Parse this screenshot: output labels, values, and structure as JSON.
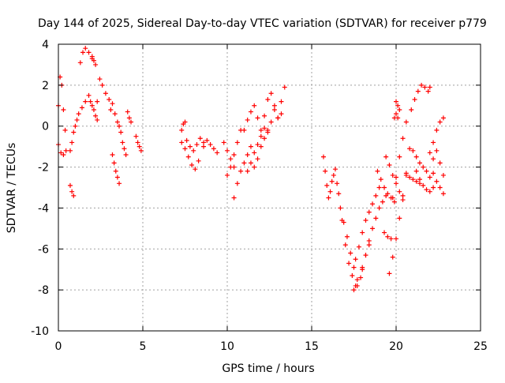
{
  "chart_data": {
    "type": "scatter",
    "title": "Day 144 of 2025, Sidereal Day-to-day VTEC variation (SDTVAR) for receiver p779",
    "xlabel": "GPS time / hours",
    "ylabel": "SDTVAR / TECUs",
    "xlim": [
      0,
      25
    ],
    "ylim": [
      -10,
      4
    ],
    "xticks": [
      0,
      5,
      10,
      15,
      20,
      25
    ],
    "xtick_labels": [
      "0",
      "5",
      "10",
      "15",
      "20",
      "25"
    ],
    "yticks": [
      4,
      2,
      0,
      -2,
      -4,
      -6,
      -8,
      -10
    ],
    "ytick_labels": [
      "4",
      "2",
      "0",
      "-2",
      "-4",
      "-6",
      "-8",
      "-10"
    ],
    "grid": true,
    "legend": "none",
    "marker": "plus",
    "color": "#ff0000",
    "series": [
      {
        "x": [
          0.0,
          0.1,
          0.2,
          0.3,
          0.4
        ],
        "y": [
          1.0,
          2.4,
          2.0,
          0.8,
          -0.2
        ]
      },
      {
        "x": [
          0.0,
          0.15,
          0.3,
          0.45
        ],
        "y": [
          -0.9,
          -1.3,
          -1.4,
          -1.2
        ]
      },
      {
        "x": [
          0.7,
          0.8,
          0.9,
          1.0,
          1.1,
          1.2,
          1.4,
          1.6
        ],
        "y": [
          -1.2,
          -0.8,
          -0.3,
          0.0,
          0.3,
          0.6,
          0.9,
          1.2
        ]
      },
      {
        "x": [
          0.7,
          0.8,
          0.9
        ],
        "y": [
          -2.9,
          -3.2,
          -3.4
        ]
      },
      {
        "x": [
          1.3,
          1.45,
          1.6,
          1.8,
          2.0
        ],
        "y": [
          3.1,
          3.6,
          3.8,
          3.6,
          3.3
        ]
      },
      {
        "x": [
          1.8,
          1.9,
          2.0,
          2.1,
          2.2,
          2.3
        ],
        "y": [
          1.5,
          1.2,
          1.0,
          0.8,
          0.5,
          0.3
        ]
      },
      {
        "x": [
          2.0,
          2.1,
          2.2
        ],
        "y": [
          3.4,
          3.2,
          3.0
        ]
      },
      {
        "x": [
          2.3,
          2.45,
          2.6,
          2.8,
          3.0,
          3.1
        ],
        "y": [
          1.2,
          2.3,
          2.0,
          1.6,
          1.3,
          0.8
        ]
      },
      {
        "x": [
          3.2,
          3.35,
          3.5,
          3.6,
          3.7
        ],
        "y": [
          1.1,
          0.6,
          0.2,
          0.0,
          -0.3
        ]
      },
      {
        "x": [
          3.2,
          3.3,
          3.4,
          3.5,
          3.6
        ],
        "y": [
          -1.4,
          -1.8,
          -2.2,
          -2.5,
          -2.8
        ]
      },
      {
        "x": [
          3.8,
          3.9,
          4.0
        ],
        "y": [
          -0.8,
          -1.1,
          -1.4
        ]
      },
      {
        "x": [
          4.1,
          4.2,
          4.3
        ],
        "y": [
          0.7,
          0.4,
          0.2
        ]
      },
      {
        "x": [
          4.6,
          4.7,
          4.8,
          4.9
        ],
        "y": [
          -0.5,
          -0.8,
          -1.0,
          -1.2
        ]
      },
      {
        "x": [
          7.3,
          7.4,
          7.5
        ],
        "y": [
          -0.2,
          0.1,
          0.2
        ]
      },
      {
        "x": [
          7.3,
          7.5,
          7.7,
          7.9,
          8.1,
          8.3
        ],
        "y": [
          -0.8,
          -1.1,
          -1.5,
          -1.9,
          -2.1,
          -1.7
        ]
      },
      {
        "x": [
          7.6,
          7.8,
          8.0,
          8.2,
          8.4,
          8.6
        ],
        "y": [
          -0.7,
          -1.0,
          -1.2,
          -0.9,
          -0.6,
          -0.8
        ]
      },
      {
        "x": [
          8.6,
          8.8,
          9.0,
          9.2,
          9.4
        ],
        "y": [
          -1.0,
          -0.7,
          -0.9,
          -1.1,
          -1.3
        ]
      },
      {
        "x": [
          9.8,
          10.0,
          10.2,
          10.4
        ],
        "y": [
          -0.8,
          -1.2,
          -1.6,
          -2.0
        ]
      },
      {
        "x": [
          10.0,
          10.2,
          10.4,
          10.6,
          10.8
        ],
        "y": [
          -2.4,
          -2.0,
          -1.4,
          -0.8,
          -0.2
        ]
      },
      {
        "x": [
          10.4,
          10.6,
          10.8,
          11.0,
          11.2,
          11.4
        ],
        "y": [
          -3.5,
          -2.8,
          -2.2,
          -1.8,
          -1.4,
          -1.0
        ]
      },
      {
        "x": [
          11.0,
          11.2,
          11.4,
          11.6,
          11.8,
          12.0
        ],
        "y": [
          -0.2,
          0.3,
          0.7,
          1.0,
          0.4,
          -0.2
        ]
      },
      {
        "x": [
          11.2,
          11.4,
          11.6,
          11.8,
          12.0,
          12.2
        ],
        "y": [
          -2.2,
          -1.8,
          -1.3,
          -0.9,
          -0.5,
          -0.1
        ]
      },
      {
        "x": [
          11.6,
          11.8,
          12.0,
          12.2,
          12.4
        ],
        "y": [
          -2.0,
          -1.6,
          -1.0,
          -0.6,
          -0.2
        ]
      },
      {
        "x": [
          12.2,
          12.4,
          12.6,
          12.8,
          13.0,
          13.2,
          13.4
        ],
        "y": [
          0.5,
          1.3,
          1.6,
          1.0,
          0.4,
          1.2,
          1.9
        ]
      },
      {
        "x": [
          12.4,
          12.6,
          12.8,
          13.0,
          13.2
        ],
        "y": [
          -0.3,
          0.2,
          0.8,
          0.4,
          0.6
        ]
      },
      {
        "x": [
          15.7,
          15.8,
          15.9,
          16.0,
          16.1,
          16.2,
          16.3,
          16.4
        ],
        "y": [
          -1.5,
          -2.2,
          -2.9,
          -3.5,
          -3.2,
          -2.7,
          -2.4,
          -2.1
        ]
      },
      {
        "x": [
          16.5,
          16.6,
          16.8,
          17.0,
          17.2,
          17.4,
          17.6
        ],
        "y": [
          -2.8,
          -3.3,
          -4.6,
          -5.8,
          -6.7,
          -7.3,
          -7.8
        ]
      },
      {
        "x": [
          16.7,
          16.9,
          17.1,
          17.3,
          17.5,
          17.7
        ],
        "y": [
          -4.0,
          -4.7,
          -5.4,
          -6.2,
          -6.9,
          -7.5
        ]
      },
      {
        "x": [
          17.5,
          17.7,
          17.9,
          18.0,
          18.2,
          18.4
        ],
        "y": [
          -8.0,
          -7.8,
          -7.4,
          -7.0,
          -6.3,
          -5.8
        ]
      },
      {
        "x": [
          17.6,
          17.8,
          18.0,
          18.2,
          18.4,
          18.6,
          18.8,
          19.0
        ],
        "y": [
          -6.5,
          -5.9,
          -5.2,
          -4.6,
          -4.2,
          -3.8,
          -3.4,
          -3.0
        ]
      },
      {
        "x": [
          18.0,
          18.2,
          18.4,
          18.6,
          18.8,
          19.0,
          19.2,
          19.4
        ],
        "y": [
          -6.9,
          -6.3,
          -5.6,
          -5.0,
          -4.5,
          -4.0,
          -3.7,
          -3.4
        ]
      },
      {
        "x": [
          18.9,
          19.1,
          19.3,
          19.5,
          19.7,
          19.9
        ],
        "y": [
          -2.2,
          -2.6,
          -3.0,
          -3.3,
          -3.5,
          -3.7
        ]
      },
      {
        "x": [
          19.3,
          19.5,
          19.7
        ],
        "y": [
          -5.2,
          -5.4,
          -5.5
        ]
      },
      {
        "x": [
          19.4,
          19.6,
          19.8,
          20.0,
          20.2,
          20.4
        ],
        "y": [
          -1.5,
          -1.9,
          -2.4,
          -2.8,
          -3.2,
          -3.6
        ]
      },
      {
        "x": [
          19.6,
          19.8,
          20.0,
          20.2,
          20.4,
          20.6,
          20.8
        ],
        "y": [
          -7.2,
          -6.4,
          -5.5,
          -4.5,
          -3.4,
          -2.3,
          -1.1
        ]
      },
      {
        "x": [
          19.8,
          20.0,
          20.2,
          20.4,
          20.6
        ],
        "y": [
          -3.5,
          -2.5,
          -1.5,
          -0.6,
          0.2
        ]
      },
      {
        "x": [
          19.9,
          20.0,
          20.1
        ],
        "y": [
          0.4,
          0.6,
          0.4
        ]
      },
      {
        "x": [
          20.0,
          20.1,
          20.2
        ],
        "y": [
          1.2,
          1.0,
          0.8
        ]
      },
      {
        "x": [
          20.6,
          20.8,
          21.0,
          21.2,
          21.4
        ],
        "y": [
          -2.4,
          -2.5,
          -2.6,
          -2.7,
          -2.8
        ]
      },
      {
        "x": [
          20.9,
          21.1,
          21.3,
          21.5,
          21.7,
          21.9,
          22.0
        ],
        "y": [
          0.8,
          1.3,
          1.7,
          2.0,
          1.9,
          1.7,
          1.9
        ]
      },
      {
        "x": [
          21.0,
          21.2,
          21.4,
          21.6,
          21.8,
          22.0
        ],
        "y": [
          -1.2,
          -1.5,
          -1.8,
          -2.0,
          -2.2,
          -2.5
        ]
      },
      {
        "x": [
          21.2,
          21.4,
          21.6,
          21.8,
          22.0,
          22.2
        ],
        "y": [
          -2.2,
          -2.6,
          -2.9,
          -3.1,
          -3.2,
          -3.0
        ]
      },
      {
        "x": [
          22.0,
          22.2,
          22.4,
          22.6,
          22.8
        ],
        "y": [
          -1.3,
          -0.8,
          -0.2,
          0.2,
          0.4
        ]
      },
      {
        "x": [
          22.2,
          22.4,
          22.6,
          22.8
        ],
        "y": [
          -2.3,
          -2.7,
          -3.0,
          -3.3
        ]
      },
      {
        "x": [
          22.2,
          22.4,
          22.6,
          22.8
        ],
        "y": [
          -1.6,
          -1.2,
          -1.8,
          -2.4
        ]
      }
    ]
  }
}
